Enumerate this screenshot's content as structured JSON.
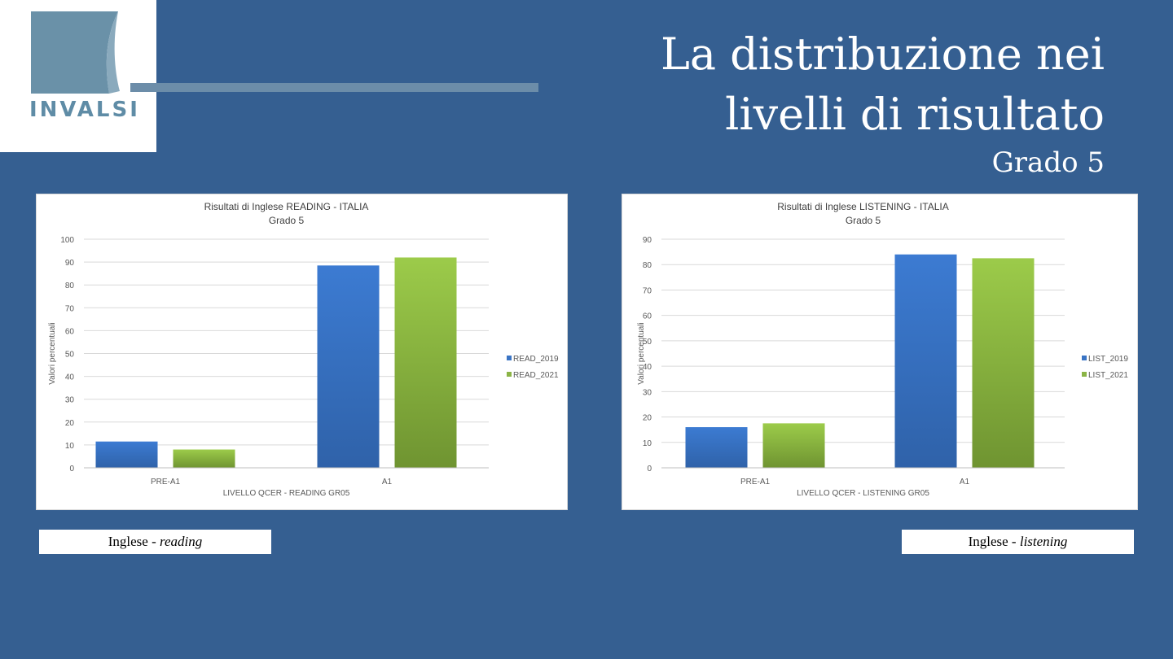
{
  "logo": {
    "text": "INVALSI"
  },
  "header": {
    "title_line1": "La distribuzione nei",
    "title_line2": "livelli di risultato",
    "subtitle": "Grado 5"
  },
  "captions": [
    {
      "prefix": "Inglese - ",
      "emphasis": "reading"
    },
    {
      "prefix": "Inglese - ",
      "emphasis": "listening"
    }
  ],
  "chart_data": [
    {
      "type": "bar",
      "title": "Risultati di Inglese READING - ITALIA",
      "subtitle": "Grado 5",
      "xlabel": "LIVELLO QCER - READING GR05",
      "ylabel": "Valori percentuali",
      "categories": [
        "PRE-A1",
        "A1"
      ],
      "series": [
        {
          "name": "READ_2019",
          "values": [
            11.5,
            88.5
          ]
        },
        {
          "name": "READ_2021",
          "values": [
            8,
            92
          ]
        }
      ],
      "ylim": [
        0,
        100
      ],
      "yticks": [
        0,
        10,
        20,
        30,
        40,
        50,
        60,
        70,
        80,
        90,
        100
      ],
      "grid": true,
      "legend": "right"
    },
    {
      "type": "bar",
      "title": "Risultati di Inglese LISTENING - ITALIA",
      "subtitle": "Grado 5",
      "xlabel": "LIVELLO QCER - LISTENING GR05",
      "ylabel": "Valori percentuali",
      "categories": [
        "PRE-A1",
        "A1"
      ],
      "series": [
        {
          "name": "LIST_2019",
          "values": [
            16,
            84
          ]
        },
        {
          "name": "LIST_2021",
          "values": [
            17.5,
            82.5
          ]
        }
      ],
      "ylim": [
        0,
        90
      ],
      "yticks": [
        0,
        10,
        20,
        30,
        40,
        50,
        60,
        70,
        80,
        90
      ],
      "grid": true,
      "legend": "right"
    }
  ],
  "colors": {
    "series_a": "#3a74c4",
    "series_b": "#8bb446"
  }
}
